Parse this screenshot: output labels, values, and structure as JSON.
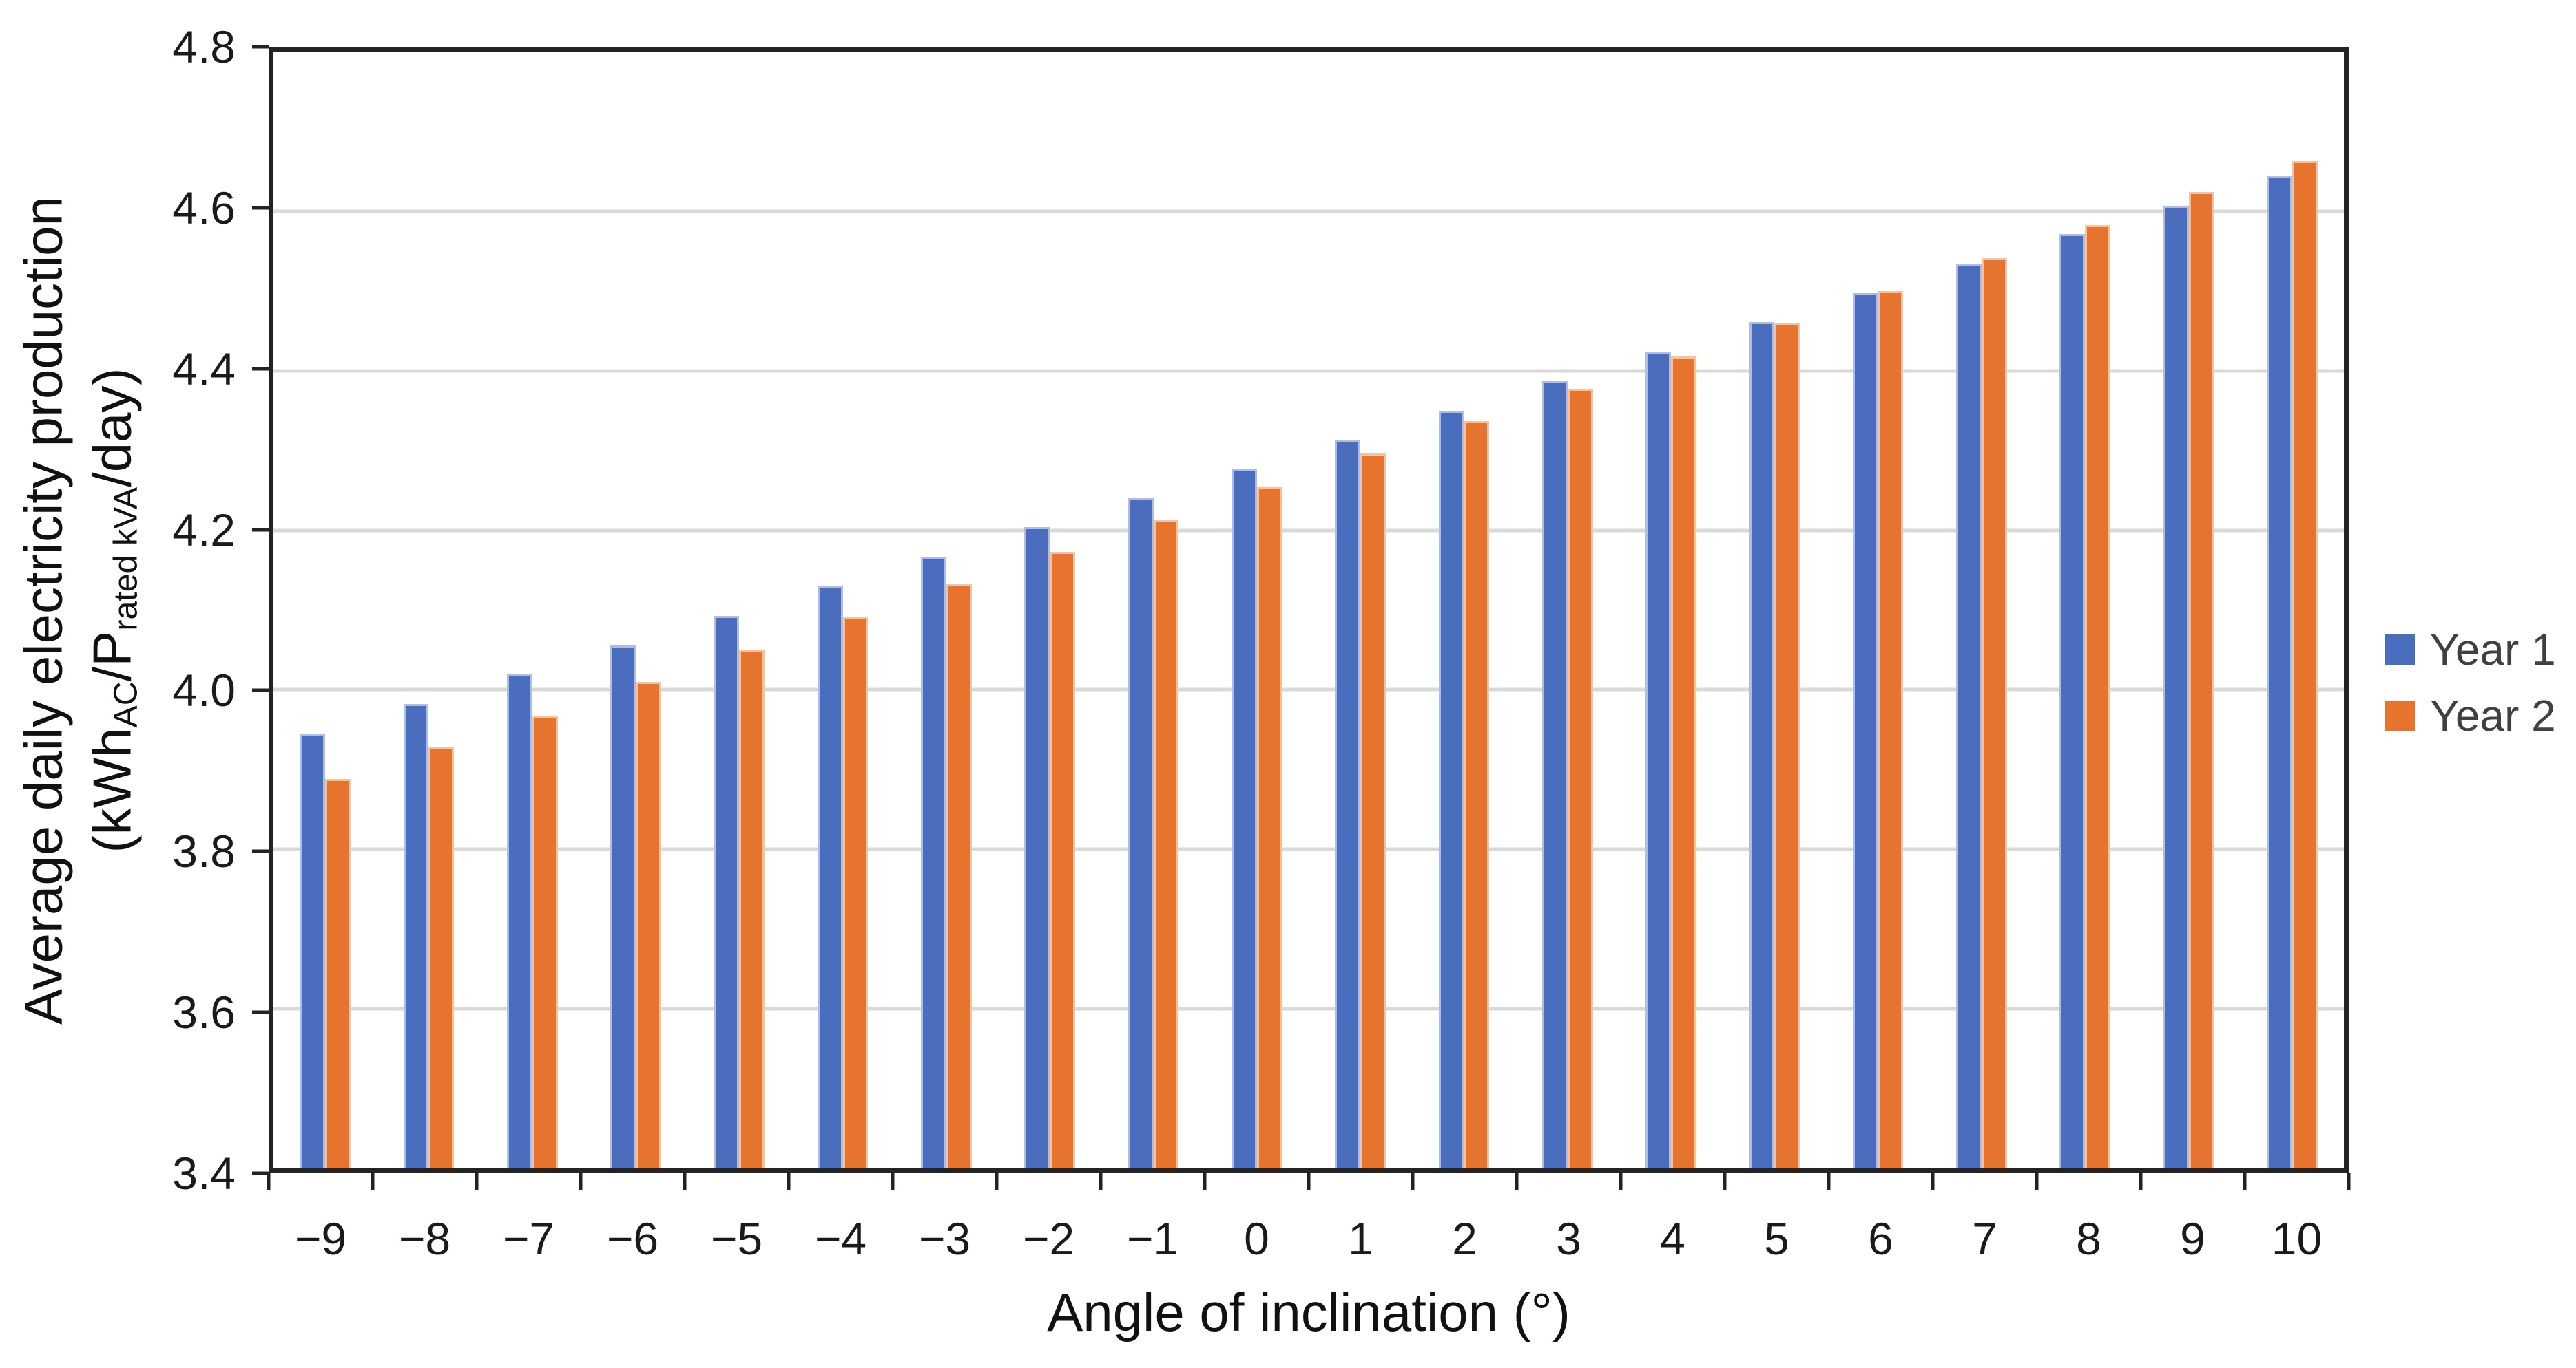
{
  "chart_data": {
    "type": "bar",
    "title": "",
    "xlabel": "Angle of inclination (°)",
    "ylabel": {
      "line1": "Average daily electricity production",
      "line2_parts": [
        {
          "text": "(kWh"
        },
        {
          "text": "AC",
          "subscript": true
        },
        {
          "text": "/P"
        },
        {
          "text": "rated kVA",
          "subscript": true
        },
        {
          "text": "/day)"
        }
      ]
    },
    "categories": [
      "−9",
      "−8",
      "−7",
      "−6",
      "−5",
      "−4",
      "−3",
      "−2",
      "−1",
      "0",
      "1",
      "2",
      "3",
      "4",
      "5",
      "6",
      "7",
      "8",
      "9",
      "10"
    ],
    "series": [
      {
        "name": "Year 1",
        "color": "#4B6DBE",
        "border_color": "#ADBDE5",
        "values": [
          3.945,
          3.982,
          4.019,
          4.056,
          4.093,
          4.13,
          4.167,
          4.204,
          4.24,
          4.277,
          4.313,
          4.35,
          4.387,
          4.424,
          4.461,
          4.497,
          4.534,
          4.571,
          4.607,
          4.644
        ]
      },
      {
        "name": "Year 2",
        "color": "#E6732E",
        "border_color": "#F5C3A0",
        "values": [
          3.888,
          3.928,
          3.968,
          4.01,
          4.05,
          4.092,
          4.132,
          4.173,
          4.213,
          4.255,
          4.296,
          4.337,
          4.377,
          4.418,
          4.459,
          4.5,
          4.541,
          4.583,
          4.624,
          4.663
        ]
      }
    ],
    "ylim": [
      3.4,
      4.8
    ],
    "ytick_step": 0.2,
    "yticks": [
      "3.4",
      "3.6",
      "3.8",
      "4.0",
      "4.2",
      "4.4",
      "4.6",
      "4.8"
    ],
    "grid": true,
    "gridline_color": "#D9D9D9",
    "axis_color": "#232323",
    "tick_label_color": "#1A1A1A",
    "legend_position": "right",
    "legend_text_color": "#404040"
  }
}
